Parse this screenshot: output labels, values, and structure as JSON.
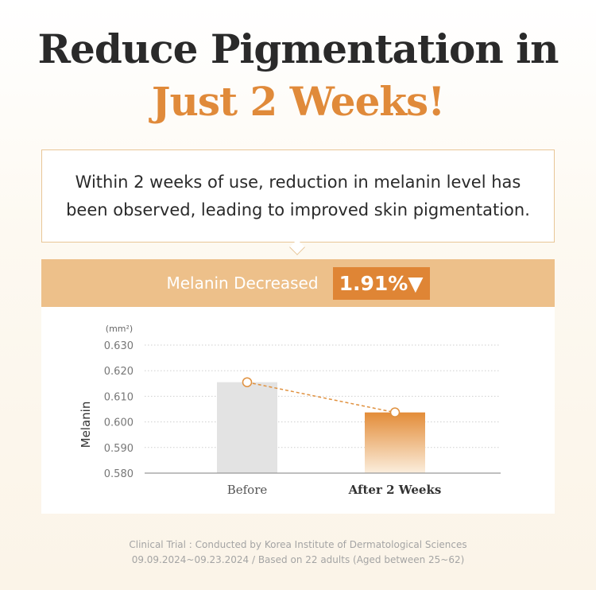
{
  "title_line1": "Reduce Pigmentation in",
  "title_line2": "Just 2 Weeks!",
  "description": "Within 2 weeks of use, reduction in melanin level has been observed, leading to improved skin pigmentation.",
  "highlight": {
    "label": "Melanin Decreased",
    "value": "1.91%▼"
  },
  "colors": {
    "accent": "#df8535",
    "band": "#edc08a",
    "before_bar": "#e3e3e3",
    "title": "#2a2a2a"
  },
  "chart_data": {
    "type": "bar",
    "categories": [
      "Before",
      "After 2 Weeks"
    ],
    "values": [
      0.6155,
      0.6037
    ],
    "ylabel": "Melanin",
    "unit": "(mm²)",
    "ylim": [
      0.58,
      0.63
    ],
    "yticks": [
      "0.630",
      "0.620",
      "0.610",
      "0.600",
      "0.590",
      "0.580"
    ],
    "grid": true,
    "overlay": "dashed line connecting bar tops"
  },
  "footer": {
    "line1": "Clinical Trial : Conducted by Korea Institute of Dermatological Sciences",
    "line2": "09.09.2024~09.23.2024 / Based on  22 adults (Aged between 25~62)"
  }
}
